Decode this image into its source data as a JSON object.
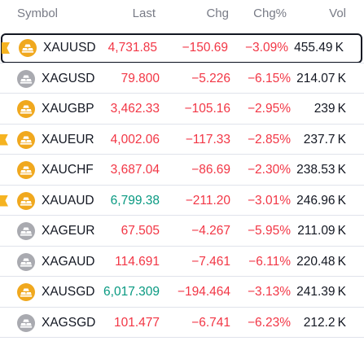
{
  "header": {
    "symbol": "Symbol",
    "last": "Last",
    "chg": "Chg",
    "chgp": "Chg%",
    "vol": "Vol"
  },
  "colors": {
    "gold": "#f0a81e",
    "silver": "#a9aab0",
    "negative": "#f23645",
    "positive": "#089981",
    "flag": "#f5b321"
  },
  "rows": [
    {
      "symbol": "XAUUSD",
      "last": "4,731.85",
      "chg": "−150.69",
      "chgp": "−3.09%",
      "vol": "455.49 K",
      "metal": "gold",
      "last_color": "red",
      "flagged": true,
      "selected": true
    },
    {
      "symbol": "XAGUSD",
      "last": "79.800",
      "chg": "−5.226",
      "chgp": "−6.15%",
      "vol": "214.07 K",
      "metal": "silver",
      "last_color": "red",
      "flagged": false,
      "selected": false
    },
    {
      "symbol": "XAUGBP",
      "last": "3,462.33",
      "chg": "−105.16",
      "chgp": "−2.95%",
      "vol": "239 K",
      "metal": "gold",
      "last_color": "red",
      "flagged": false,
      "selected": false
    },
    {
      "symbol": "XAUEUR",
      "last": "4,002.06",
      "chg": "−117.33",
      "chgp": "−2.85%",
      "vol": "237.7 K",
      "metal": "gold",
      "last_color": "red",
      "flagged": true,
      "selected": false
    },
    {
      "symbol": "XAUCHF",
      "last": "3,687.04",
      "chg": "−86.69",
      "chgp": "−2.30%",
      "vol": "238.53 K",
      "metal": "gold",
      "last_color": "red",
      "flagged": false,
      "selected": false
    },
    {
      "symbol": "XAUAUD",
      "last": "6,799.38",
      "chg": "−211.20",
      "chgp": "−3.01%",
      "vol": "246.96 K",
      "metal": "gold",
      "last_color": "green",
      "flagged": true,
      "selected": false
    },
    {
      "symbol": "XAGEUR",
      "last": "67.505",
      "chg": "−4.267",
      "chgp": "−5.95%",
      "vol": "211.09 K",
      "metal": "silver",
      "last_color": "red",
      "flagged": false,
      "selected": false
    },
    {
      "symbol": "XAGAUD",
      "last": "114.691",
      "chg": "−7.461",
      "chgp": "−6.11%",
      "vol": "220.48 K",
      "metal": "silver",
      "last_color": "red",
      "flagged": false,
      "selected": false
    },
    {
      "symbol": "XAUSGD",
      "last": "6,017.309",
      "chg": "−194.464",
      "chgp": "−3.13%",
      "vol": "241.39 K",
      "metal": "gold",
      "last_color": "green",
      "flagged": false,
      "selected": false
    },
    {
      "symbol": "XAGSGD",
      "last": "101.477",
      "chg": "−6.741",
      "chgp": "−6.23%",
      "vol": "212.2 K",
      "metal": "silver",
      "last_color": "red",
      "flagged": false,
      "selected": false
    }
  ]
}
